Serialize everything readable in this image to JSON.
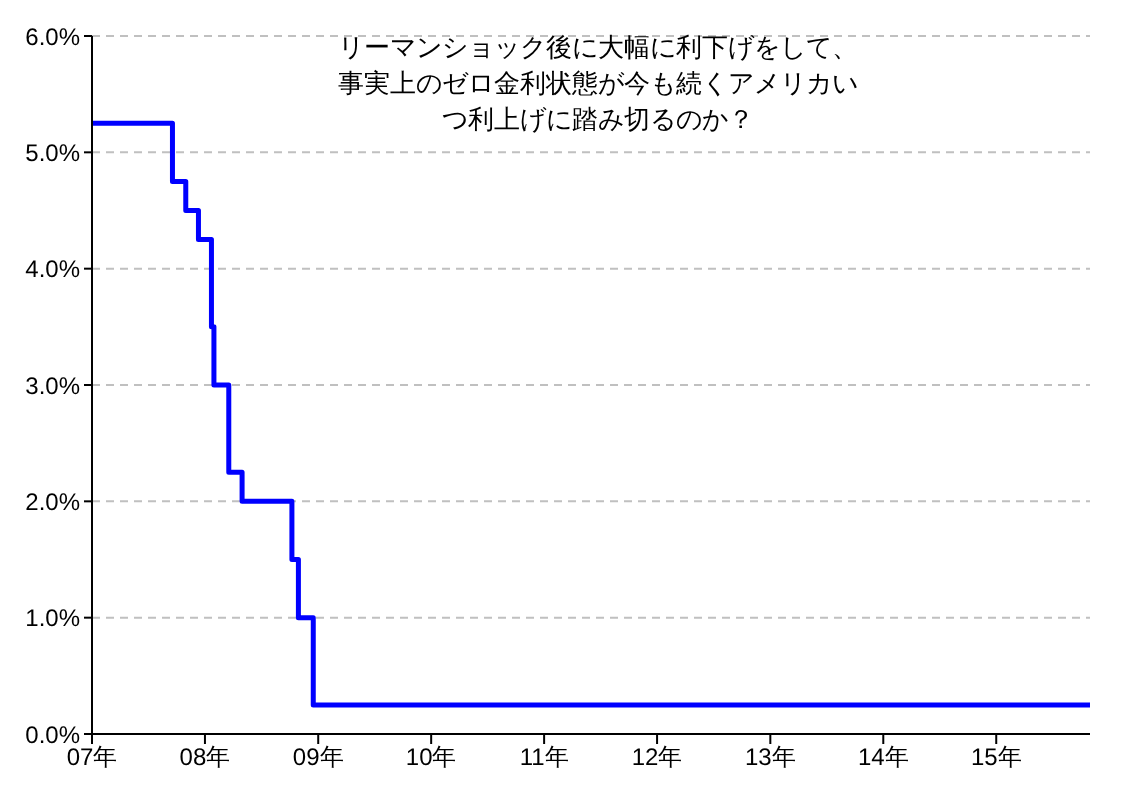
{
  "chart_data": {
    "type": "step",
    "title": "リーマンショック後に大幅に利下げをして、事実上のゼロ金利状態が今も続くアメリカいつ利上げに踏み切るのか？",
    "x": [
      "2007-01-01",
      "2007-09-18",
      "2007-10-31",
      "2007-12-11",
      "2008-01-22",
      "2008-01-30",
      "2008-03-18",
      "2008-04-30",
      "2008-10-08",
      "2008-10-29",
      "2008-12-16",
      "2015-10-31"
    ],
    "series": [
      {
        "color": "#0000ff",
        "values": [
          5.25,
          4.75,
          4.5,
          4.25,
          3.5,
          3.0,
          2.25,
          2.0,
          1.5,
          1.0,
          0.25,
          0.25
        ]
      }
    ],
    "xlim": [
      "2007-01-01",
      "2015-10-31"
    ],
    "xticks": [
      {
        "value": "2007-01-01",
        "label": "07年"
      },
      {
        "value": "2008-01-01",
        "label": "08年"
      },
      {
        "value": "2009-01-01",
        "label": "09年"
      },
      {
        "value": "2010-01-01",
        "label": "10年"
      },
      {
        "value": "2011-01-01",
        "label": "11年"
      },
      {
        "value": "2012-01-01",
        "label": "12年"
      },
      {
        "value": "2013-01-01",
        "label": "13年"
      },
      {
        "value": "2014-01-01",
        "label": "14年"
      },
      {
        "value": "2015-01-01",
        "label": "15年"
      }
    ],
    "ylim": [
      0,
      6
    ],
    "yticks": [
      {
        "value": 0,
        "label": "0.0%"
      },
      {
        "value": 1,
        "label": "1.0%"
      },
      {
        "value": 2,
        "label": "2.0%"
      },
      {
        "value": 3,
        "label": "3.0%"
      },
      {
        "value": 4,
        "label": "4.0%"
      },
      {
        "value": 5,
        "label": "5.0%"
      },
      {
        "value": 6,
        "label": "6.0%"
      }
    ],
    "grid": "y",
    "legend": false,
    "marker": "none",
    "line_style": "solid"
  }
}
